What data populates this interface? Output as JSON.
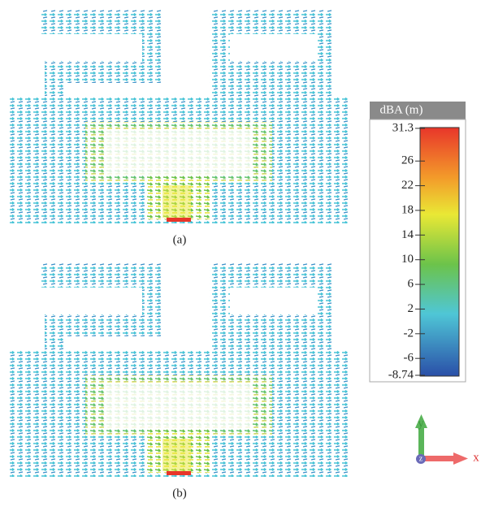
{
  "panels": [
    {
      "label": "(a)"
    },
    {
      "label": "(b)"
    }
  ],
  "colorbar": {
    "title": "dBA (m)",
    "ticks": [
      31.3,
      26,
      22,
      18,
      14,
      10,
      6,
      2,
      -2,
      -6,
      -8.74
    ]
  },
  "axes": {
    "x": "x",
    "y": "y",
    "z": "z"
  }
}
